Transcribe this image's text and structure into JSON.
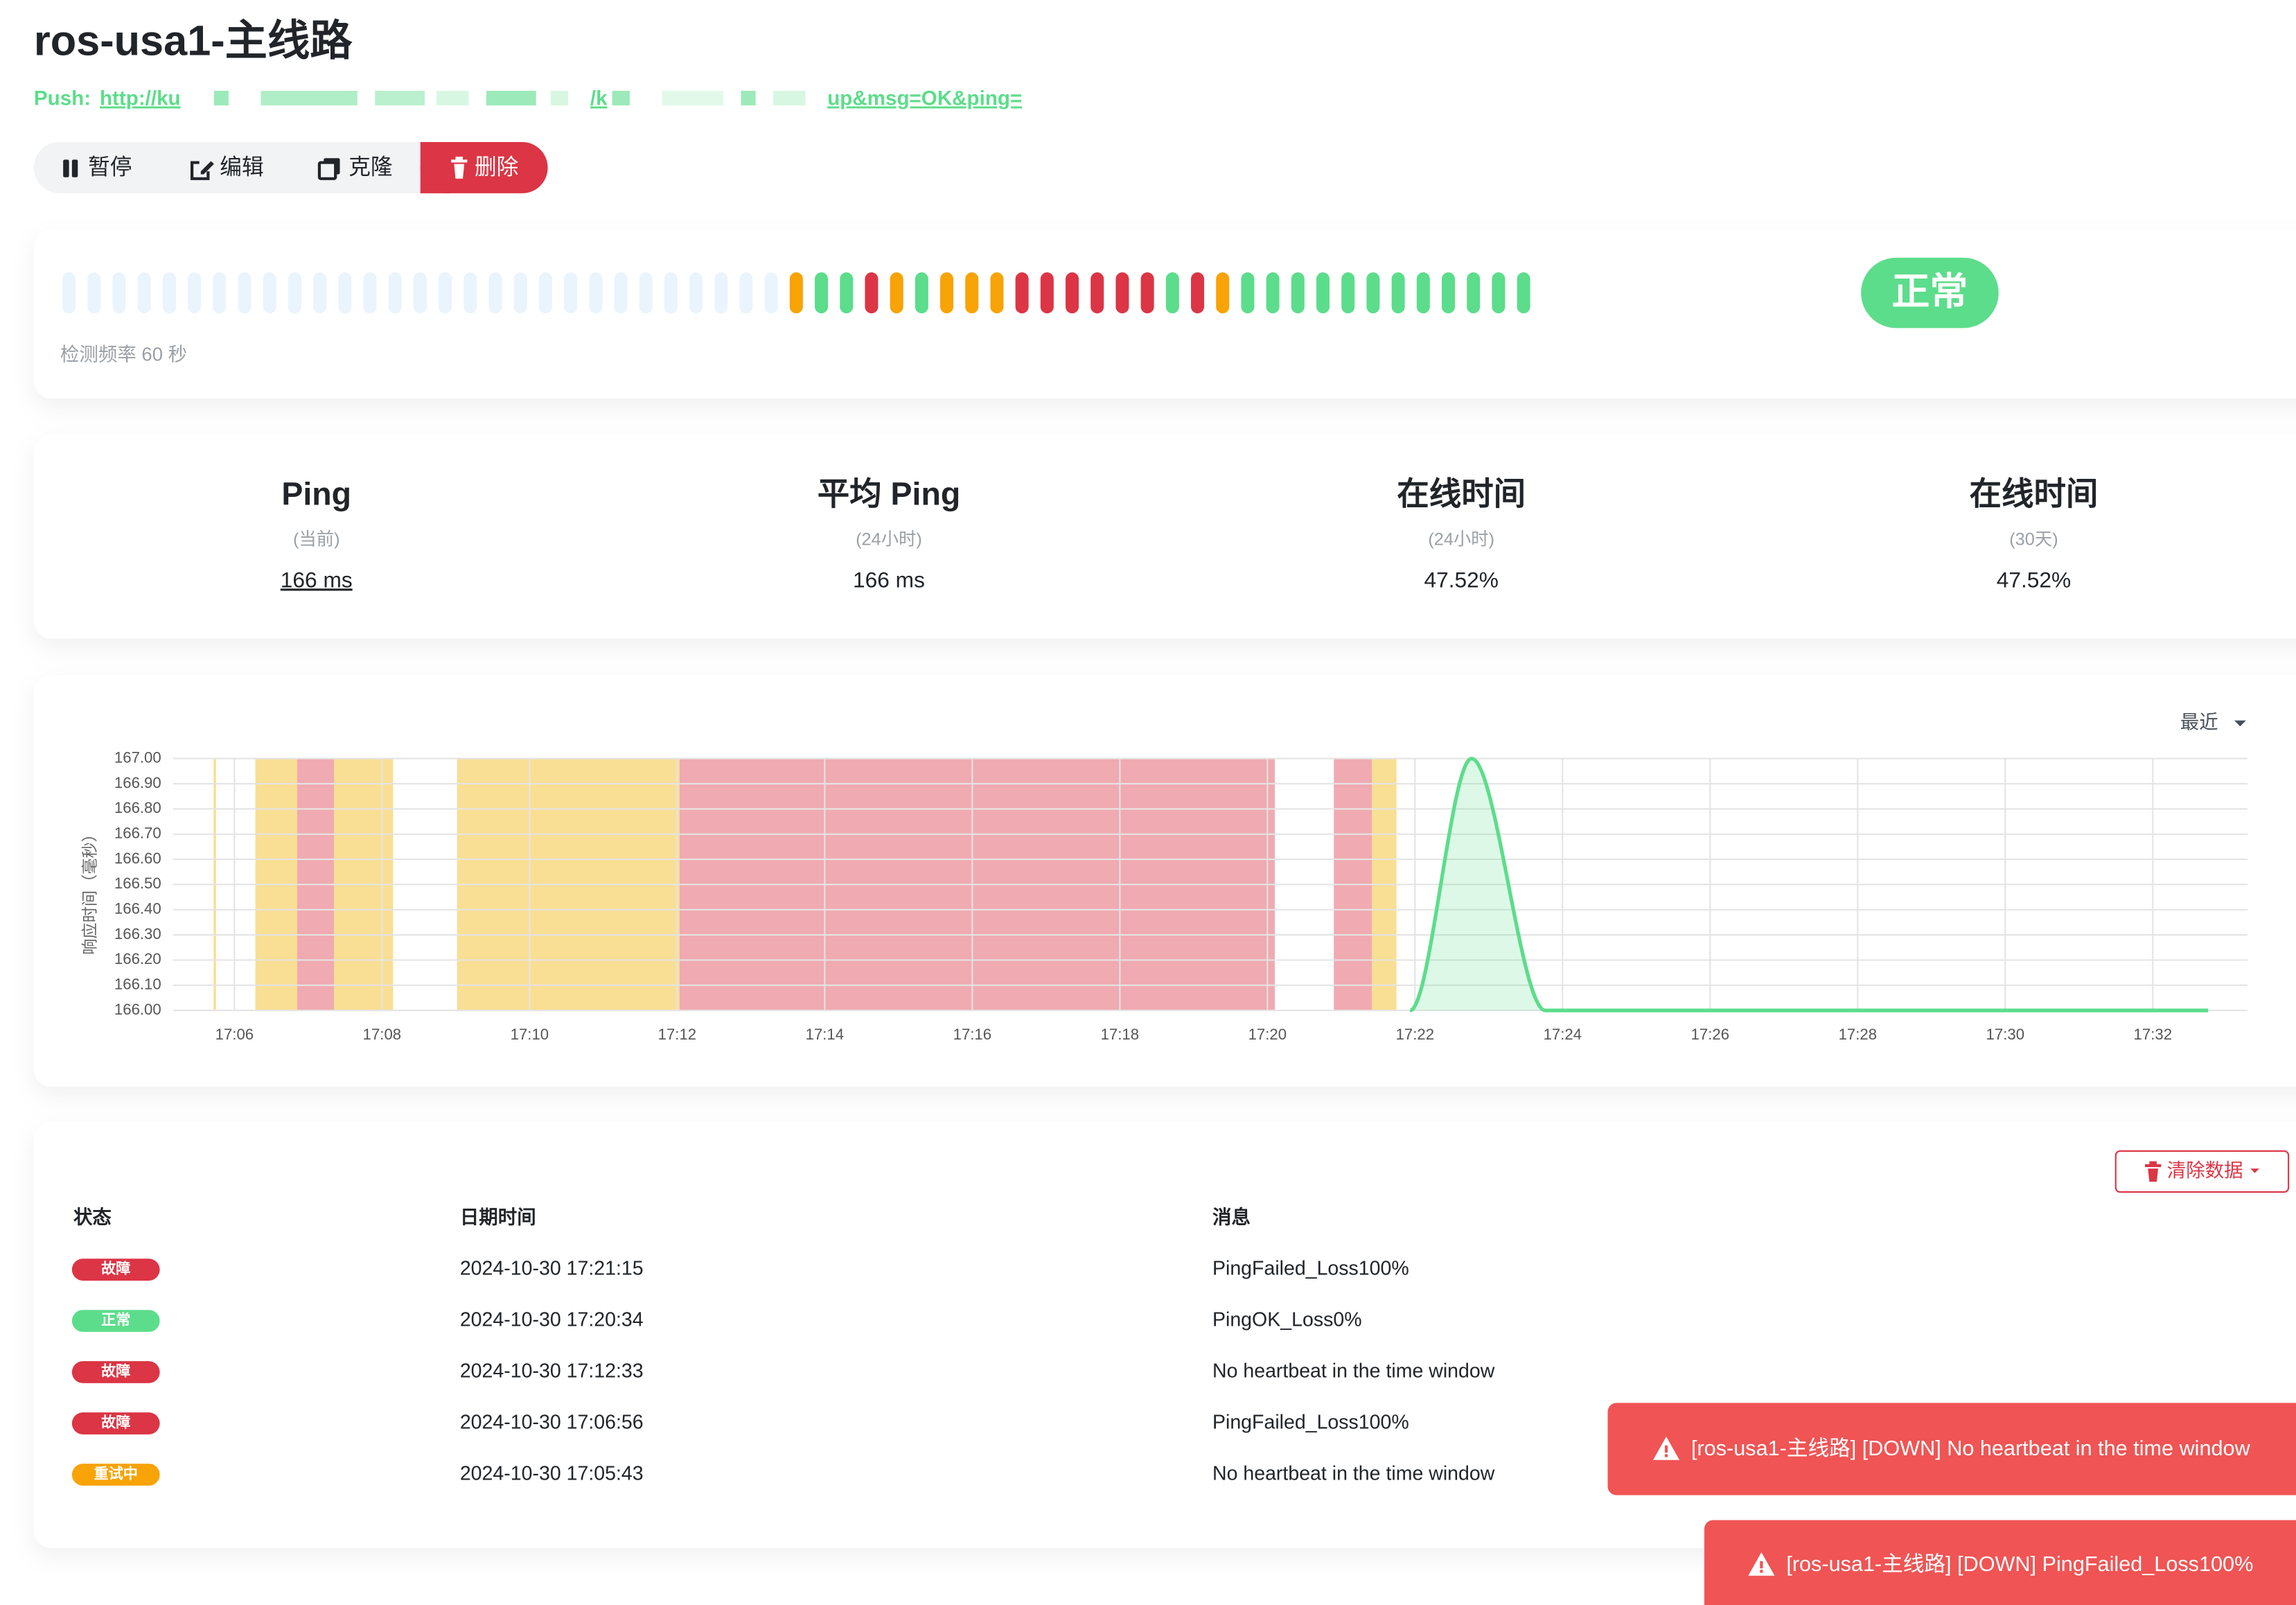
{
  "header": {
    "title": "ros-usa1-主线路",
    "push_label": "Push:",
    "push_url_parts": [
      "http://ku",
      "/k",
      "up&msg=OK&ping="
    ]
  },
  "actions": [
    "暂停",
    "编辑",
    "克隆",
    "删除"
  ],
  "heartbeat": {
    "beats": [
      null,
      null,
      null,
      null,
      null,
      null,
      null,
      null,
      null,
      null,
      null,
      null,
      null,
      null,
      null,
      null,
      null,
      null,
      null,
      null,
      null,
      null,
      null,
      null,
      null,
      null,
      null,
      null,
      null,
      2,
      1,
      1,
      0,
      2,
      1,
      2,
      2,
      2,
      0,
      0,
      0,
      0,
      0,
      0,
      1,
      0,
      2,
      1,
      1,
      1,
      1,
      1,
      1,
      1,
      1,
      1,
      1,
      1,
      1
    ],
    "status": "正常",
    "interval_text": "检测频率 60 秒"
  },
  "stats": [
    {
      "title": "Ping",
      "subtitle": "(当前)",
      "value": "166 ms"
    },
    {
      "title": "平均 Ping",
      "subtitle": "(24小时)",
      "value": "166 ms"
    },
    {
      "title": "在线时间",
      "subtitle": "(24小时)",
      "value": "47.52%"
    },
    {
      "title": "在线时间",
      "subtitle": "(30天)",
      "value": "47.52%"
    }
  ],
  "chart_data": {
    "type": "line",
    "y_label": "响应时间（毫秒）",
    "range_selector": "最近",
    "color": "#5cdd8b",
    "grid": true,
    "xlim": [
      "17:05:10",
      "17:33:17"
    ],
    "xticks": [
      "17:06",
      "17:08",
      "17:10",
      "17:12",
      "17:14",
      "17:16",
      "17:18",
      "17:20",
      "17:22",
      "17:24",
      "17:26",
      "17:28",
      "17:30",
      "17:32"
    ],
    "ylim": [
      166,
      167
    ],
    "yticks": [
      {
        "value": 166,
        "label": "166.00"
      },
      {
        "value": 166.1,
        "label": "166.10"
      },
      {
        "value": 166.2,
        "label": "166.20"
      },
      {
        "value": 166.3,
        "label": "166.30"
      },
      {
        "value": 166.4,
        "label": "166.40"
      },
      {
        "value": 166.5,
        "label": "166.50"
      },
      {
        "value": 166.6,
        "label": "166.60"
      },
      {
        "value": 166.7,
        "label": "166.70"
      },
      {
        "value": 166.8,
        "label": "166.80"
      },
      {
        "value": 166.9,
        "label": "166.90"
      },
      {
        "value": 167,
        "label": "167.00"
      }
    ],
    "bands": [
      {
        "start": "17:05:43",
        "end": "17:05:45",
        "status": 2
      },
      {
        "start": "17:06:17",
        "end": "17:06:51",
        "status": 2
      },
      {
        "start": "17:06:51",
        "end": "17:07:21",
        "status": 0
      },
      {
        "start": "17:07:21",
        "end": "17:08:09",
        "status": 2
      },
      {
        "start": "17:09:01",
        "end": "17:12:02",
        "status": 2
      },
      {
        "start": "17:12:02",
        "end": "17:20:06",
        "status": 0
      },
      {
        "start": "17:20:54",
        "end": "17:21:25",
        "status": 0
      },
      {
        "start": "17:21:25",
        "end": "17:21:45",
        "status": 2
      }
    ],
    "x": [
      "17:21:56",
      "17:22:46",
      "17:23:46",
      "17:24:46",
      "17:25:46",
      "17:26:46",
      "17:27:46",
      "17:28:46",
      "17:29:46",
      "17:30:46",
      "17:31:46",
      "17:32:45"
    ],
    "values": [
      166,
      167,
      166,
      166,
      166,
      166,
      166,
      166,
      166,
      166,
      166,
      166
    ]
  },
  "events": {
    "clear_button": "清除数据",
    "columns": [
      "状态",
      "日期时间",
      "消息"
    ],
    "rows": [
      {
        "status": 0,
        "status_label": "故障",
        "datetime": "2024-10-30 17:21:15",
        "message": "PingFailed_Loss100%"
      },
      {
        "status": 1,
        "status_label": "正常",
        "datetime": "2024-10-30 17:20:34",
        "message": "PingOK_Loss0%"
      },
      {
        "status": 0,
        "status_label": "故障",
        "datetime": "2024-10-30 17:12:33",
        "message": "No heartbeat in the time window"
      },
      {
        "status": 0,
        "status_label": "故障",
        "datetime": "2024-10-30 17:06:56",
        "message": "PingFailed_Loss100%"
      },
      {
        "status": 2,
        "status_label": "重试中",
        "datetime": "2024-10-30 17:05:43",
        "message": "No heartbeat in the time window"
      }
    ]
  },
  "toasts": [
    "[ros-usa1-主线路] [DOWN] No heartbeat in the time window",
    "[ros-usa1-主线路] [DOWN] PingFailed_Loss100%"
  ]
}
